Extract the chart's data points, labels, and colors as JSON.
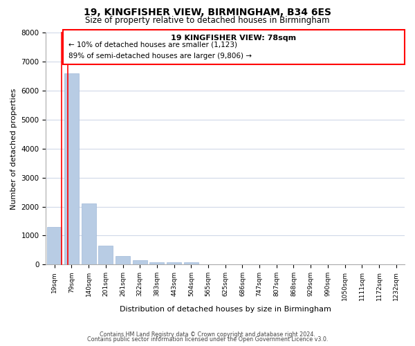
{
  "title": "19, KINGFISHER VIEW, BIRMINGHAM, B34 6ES",
  "subtitle": "Size of property relative to detached houses in Birmingham",
  "xlabel": "Distribution of detached houses by size in Birmingham",
  "ylabel": "Number of detached properties",
  "bar_labels": [
    "19sqm",
    "79sqm",
    "140sqm",
    "201sqm",
    "261sqm",
    "322sqm",
    "383sqm",
    "443sqm",
    "504sqm",
    "565sqm",
    "625sqm",
    "686sqm",
    "747sqm",
    "807sqm",
    "868sqm",
    "929sqm",
    "990sqm",
    "1050sqm",
    "1111sqm",
    "1172sqm",
    "1232sqm"
  ],
  "bar_values": [
    1300,
    6600,
    2100,
    650,
    300,
    150,
    80,
    80,
    80,
    0,
    0,
    0,
    0,
    0,
    0,
    0,
    0,
    0,
    0,
    0,
    0
  ],
  "bar_color": "#b8cce4",
  "annotation_title": "19 KINGFISHER VIEW: 78sqm",
  "annotation_line1": "← 10% of detached houses are smaller (1,123)",
  "annotation_line2": "89% of semi-detached houses are larger (9,806) →",
  "ylim": [
    0,
    8000
  ],
  "yticks": [
    0,
    1000,
    2000,
    3000,
    4000,
    5000,
    6000,
    7000,
    8000
  ],
  "bg_color": "#ffffff",
  "grid_color": "#d0d8e8",
  "footer1": "Contains HM Land Registry data © Crown copyright and database right 2024.",
  "footer2": "Contains public sector information licensed under the Open Government Licence v3.0."
}
